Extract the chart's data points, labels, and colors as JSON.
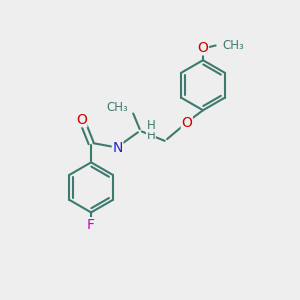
{
  "bg_color": "#eeeeee",
  "bond_color": "#3d7a6e",
  "bond_width": 1.5,
  "atom_colors": {
    "O": "#cc0000",
    "N": "#2222cc",
    "F": "#cc00cc",
    "H": "#3d7a6e",
    "C": "#3d7a6e"
  },
  "font_size_atoms": 10,
  "font_size_small": 8.5
}
